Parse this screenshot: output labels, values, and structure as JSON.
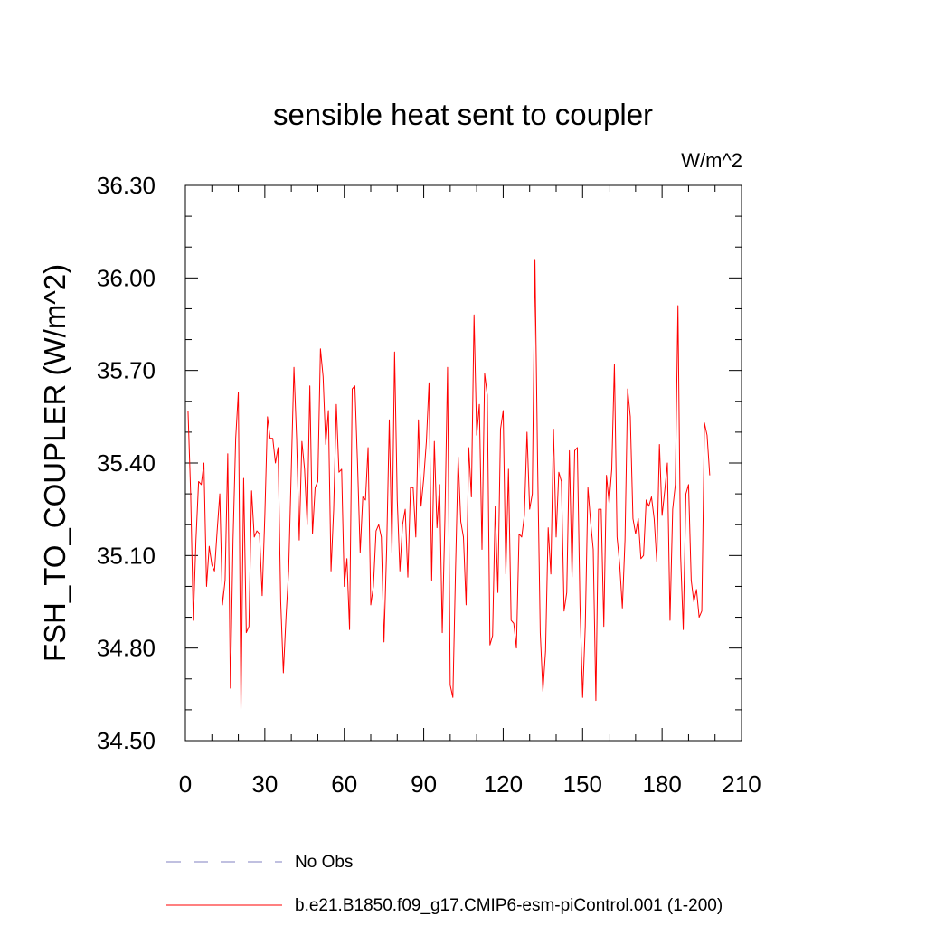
{
  "chart_data": {
    "type": "line",
    "title": "sensible heat sent to coupler",
    "units_label": "W/m^2",
    "ylabel": "FSH_TO_COUPLER  (W/m^2)",
    "xlabel": "",
    "xlim": [
      0,
      210
    ],
    "ylim": [
      34.5,
      36.3
    ],
    "x_ticks": [
      0,
      30,
      60,
      90,
      120,
      150,
      180,
      210
    ],
    "x_tick_labels": [
      "0",
      "30",
      "60",
      "90",
      "120",
      "150",
      "180",
      "210"
    ],
    "y_ticks": [
      34.5,
      34.8,
      35.1,
      35.4,
      35.7,
      36.0,
      36.3
    ],
    "y_tick_labels": [
      "34.50",
      "34.80",
      "35.10",
      "35.40",
      "35.70",
      "36.00",
      "36.30"
    ],
    "grid": false,
    "legend_position": "bottom",
    "legend": [
      {
        "label": "No Obs",
        "color": "#8080c0",
        "style": "dashed"
      },
      {
        "label": "b.e21.B1850.f09_g17.CMIP6-esm-piControl.001 (1-200)",
        "color": "#ff0000",
        "style": "solid"
      }
    ],
    "series": [
      {
        "name": "b.e21.B1850.f09_g17.CMIP6-esm-piControl.001 (1-200)",
        "color": "#ff0000",
        "x_start": 1,
        "x_step": 1,
        "values": [
          35.57,
          35.3,
          34.89,
          35.15,
          35.34,
          35.33,
          35.4,
          35.0,
          35.13,
          35.07,
          35.05,
          35.18,
          35.3,
          34.94,
          35.02,
          35.43,
          34.67,
          35.15,
          35.48,
          35.63,
          34.6,
          35.35,
          34.85,
          34.87,
          35.31,
          35.16,
          35.18,
          35.17,
          34.97,
          35.23,
          35.55,
          35.48,
          35.48,
          35.4,
          35.45,
          34.95,
          34.72,
          34.9,
          35.05,
          35.38,
          35.71,
          35.48,
          35.15,
          35.47,
          35.38,
          35.2,
          35.65,
          35.17,
          35.32,
          35.34,
          35.77,
          35.68,
          35.46,
          35.57,
          35.05,
          35.25,
          35.59,
          35.37,
          35.38,
          35.0,
          35.09,
          34.86,
          35.64,
          35.65,
          35.4,
          35.11,
          35.29,
          35.28,
          35.45,
          34.94,
          35.0,
          35.18,
          35.2,
          35.16,
          34.82,
          35.12,
          35.54,
          35.11,
          35.76,
          35.28,
          35.05,
          35.2,
          35.25,
          35.03,
          35.32,
          35.32,
          35.16,
          35.54,
          35.26,
          35.35,
          35.47,
          35.66,
          35.02,
          35.47,
          35.19,
          35.33,
          34.85,
          35.22,
          35.71,
          34.68,
          34.64,
          35.05,
          35.42,
          35.21,
          35.16,
          34.94,
          35.45,
          35.29,
          35.88,
          35.49,
          35.59,
          35.12,
          35.69,
          35.62,
          34.81,
          34.84,
          35.26,
          34.98,
          35.51,
          35.57,
          35.04,
          35.38,
          34.89,
          34.88,
          34.8,
          35.17,
          35.16,
          35.23,
          35.5,
          35.25,
          35.3,
          36.06,
          35.4,
          34.85,
          34.66,
          34.79,
          35.19,
          35.04,
          35.51,
          35.16,
          35.37,
          35.34,
          34.92,
          34.98,
          35.44,
          35.03,
          35.44,
          35.45,
          34.94,
          34.64,
          34.87,
          35.32,
          35.21,
          35.12,
          34.63,
          35.25,
          35.25,
          34.87,
          35.36,
          35.27,
          35.38,
          35.72,
          35.16,
          35.07,
          34.93,
          35.15,
          35.64,
          35.55,
          35.22,
          35.17,
          35.22,
          35.09,
          35.1,
          35.28,
          35.26,
          35.29,
          35.22,
          35.08,
          35.46,
          35.23,
          35.31,
          35.4,
          34.89,
          35.25,
          35.33,
          35.91,
          35.1,
          34.86,
          35.3,
          35.33,
          35.02,
          34.95,
          34.99,
          34.9,
          34.92,
          35.53,
          35.49,
          35.36
        ]
      }
    ]
  }
}
